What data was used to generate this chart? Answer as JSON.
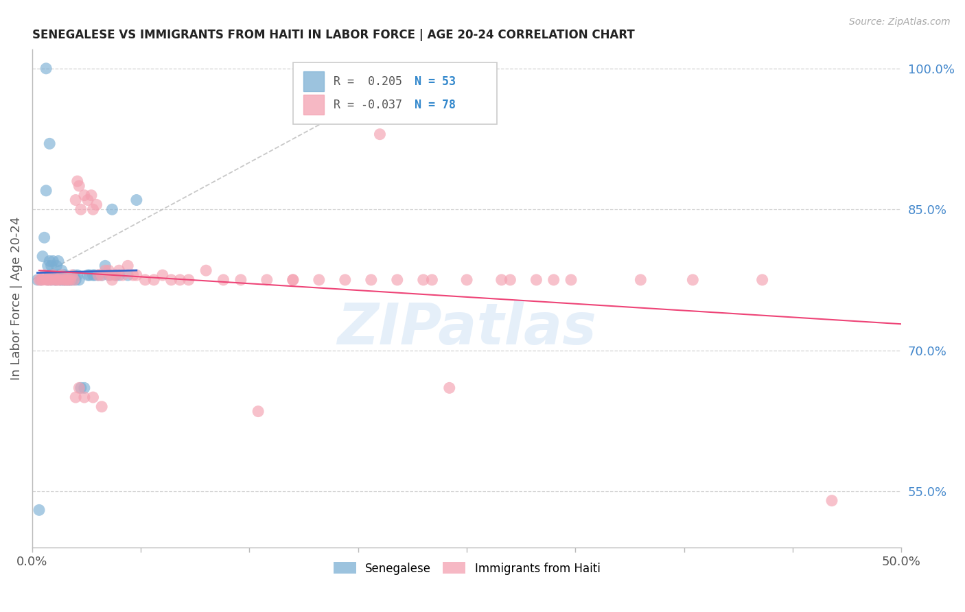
{
  "title": "SENEGALESE VS IMMIGRANTS FROM HAITI IN LABOR FORCE | AGE 20-24 CORRELATION CHART",
  "source": "Source: ZipAtlas.com",
  "ylabel": "In Labor Force | Age 20-24",
  "xlim": [
    0.0,
    0.5
  ],
  "ylim": [
    0.49,
    1.02
  ],
  "xticks": [
    0.0,
    0.0625,
    0.125,
    0.1875,
    0.25,
    0.3125,
    0.375,
    0.4375,
    0.5
  ],
  "xticklabels_show": [
    "0.0%",
    "",
    "",
    "",
    "",
    "",
    "",
    "",
    "50.0%"
  ],
  "right_yticks": [
    1.0,
    0.85,
    0.7,
    0.55
  ],
  "right_yticklabels": [
    "100.0%",
    "85.0%",
    "70.0%",
    "55.0%"
  ],
  "legend_r1": "R =  0.205",
  "legend_n1": "N = 53",
  "legend_r2": "R = -0.037",
  "legend_n2": "N = 78",
  "blue_color": "#7bafd4",
  "pink_color": "#f4a0b0",
  "trend_blue": "#3366cc",
  "trend_pink": "#ee4477",
  "diagonal_color": "#bbbbbb",
  "grid_color": "#cccccc",
  "right_tick_color": "#4488cc",
  "watermark": "ZIPatlas",
  "blue_x": [
    0.003,
    0.005,
    0.006,
    0.007,
    0.008,
    0.009,
    0.009,
    0.01,
    0.01,
    0.011,
    0.011,
    0.012,
    0.012,
    0.013,
    0.013,
    0.014,
    0.014,
    0.015,
    0.015,
    0.016,
    0.016,
    0.017,
    0.017,
    0.018,
    0.018,
    0.019,
    0.019,
    0.02,
    0.021,
    0.022,
    0.023,
    0.024,
    0.025,
    0.026,
    0.027,
    0.028,
    0.03,
    0.032,
    0.033,
    0.035,
    0.036,
    0.038,
    0.04,
    0.042,
    0.044,
    0.046,
    0.048,
    0.05,
    0.055,
    0.06,
    0.008,
    0.01,
    0.004
  ],
  "blue_y": [
    0.775,
    0.775,
    0.8,
    0.82,
    0.87,
    0.775,
    0.79,
    0.78,
    0.795,
    0.775,
    0.79,
    0.78,
    0.795,
    0.775,
    0.78,
    0.775,
    0.79,
    0.78,
    0.795,
    0.775,
    0.78,
    0.775,
    0.785,
    0.775,
    0.78,
    0.775,
    0.78,
    0.775,
    0.775,
    0.775,
    0.775,
    0.78,
    0.775,
    0.78,
    0.775,
    0.66,
    0.66,
    0.78,
    0.78,
    0.78,
    0.78,
    0.78,
    0.78,
    0.79,
    0.78,
    0.85,
    0.78,
    0.78,
    0.78,
    0.86,
    1.0,
    0.92,
    0.53
  ],
  "pink_x": [
    0.004,
    0.005,
    0.006,
    0.007,
    0.008,
    0.009,
    0.01,
    0.011,
    0.012,
    0.013,
    0.014,
    0.015,
    0.016,
    0.017,
    0.018,
    0.019,
    0.02,
    0.021,
    0.022,
    0.023,
    0.024,
    0.025,
    0.026,
    0.027,
    0.028,
    0.03,
    0.032,
    0.034,
    0.035,
    0.037,
    0.038,
    0.04,
    0.042,
    0.044,
    0.046,
    0.048,
    0.05,
    0.052,
    0.055,
    0.058,
    0.06,
    0.065,
    0.07,
    0.075,
    0.08,
    0.085,
    0.09,
    0.1,
    0.11,
    0.12,
    0.135,
    0.15,
    0.165,
    0.18,
    0.195,
    0.21,
    0.23,
    0.25,
    0.275,
    0.3,
    0.025,
    0.027,
    0.03,
    0.035,
    0.04,
    0.045,
    0.13,
    0.15,
    0.38,
    0.29,
    0.24,
    0.27,
    0.31,
    0.35,
    0.46,
    0.42,
    0.2,
    0.225
  ],
  "pink_y": [
    0.775,
    0.775,
    0.775,
    0.78,
    0.775,
    0.775,
    0.775,
    0.775,
    0.78,
    0.775,
    0.775,
    0.775,
    0.775,
    0.78,
    0.775,
    0.775,
    0.775,
    0.775,
    0.775,
    0.78,
    0.775,
    0.86,
    0.88,
    0.875,
    0.85,
    0.865,
    0.86,
    0.865,
    0.85,
    0.855,
    0.78,
    0.78,
    0.785,
    0.785,
    0.775,
    0.78,
    0.785,
    0.78,
    0.79,
    0.78,
    0.78,
    0.775,
    0.775,
    0.78,
    0.775,
    0.775,
    0.775,
    0.785,
    0.775,
    0.775,
    0.775,
    0.775,
    0.775,
    0.775,
    0.775,
    0.775,
    0.775,
    0.775,
    0.775,
    0.775,
    0.65,
    0.66,
    0.65,
    0.65,
    0.64,
    0.78,
    0.635,
    0.775,
    0.775,
    0.775,
    0.66,
    0.775,
    0.775,
    0.775,
    0.54,
    0.775,
    0.93,
    0.775
  ]
}
